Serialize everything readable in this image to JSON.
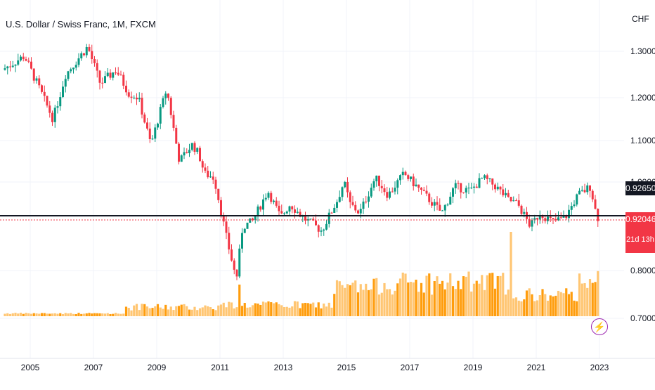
{
  "header": {
    "title": "U.S. Dollar / Swiss Franc, 1M, FXCM",
    "currency": "CHF"
  },
  "price_labels": {
    "reference_price": "0.92650",
    "last_price": "0.92046",
    "countdown": "21d 13h"
  },
  "icons": {
    "lightning": "lightning-icon"
  },
  "chart_data": {
    "type": "candlestick",
    "interval": "1M",
    "x_tick_labels": [
      "2005",
      "2007",
      "2009",
      "2011",
      "2013",
      "2015",
      "2017",
      "2019",
      "2021",
      "2023"
    ],
    "y_tick_labels": [
      "1.30000",
      "1.20000",
      "1.10000",
      "1.00000",
      "0.80000",
      "0.70000"
    ],
    "ylim": [
      0.64,
      1.36
    ],
    "xlim": [
      2004.2,
      2023.35
    ],
    "anchors": [
      [
        2004.2,
        1.26
      ],
      [
        2004.9,
        1.29
      ],
      [
        2005.5,
        1.2
      ],
      [
        2005.8,
        1.15
      ],
      [
        2006.2,
        1.25
      ],
      [
        2006.9,
        1.31
      ],
      [
        2007.3,
        1.23
      ],
      [
        2007.8,
        1.26
      ],
      [
        2008.2,
        1.21
      ],
      [
        2008.5,
        1.2
      ],
      [
        2008.9,
        1.09
      ],
      [
        2009.2,
        1.17
      ],
      [
        2009.4,
        1.22
      ],
      [
        2009.8,
        1.05
      ],
      [
        2010.2,
        1.09
      ],
      [
        2010.4,
        1.07
      ],
      [
        2010.6,
        1.02
      ],
      [
        2010.9,
        1.01
      ],
      [
        2011.3,
        0.87
      ],
      [
        2011.6,
        0.78
      ],
      [
        2011.8,
        0.9
      ],
      [
        2012.1,
        0.91
      ],
      [
        2012.6,
        0.98
      ],
      [
        2013.0,
        0.92
      ],
      [
        2013.3,
        0.95
      ],
      [
        2013.7,
        0.92
      ],
      [
        2014.3,
        0.89
      ],
      [
        2014.8,
        0.96
      ],
      [
        2015.0,
        1.0
      ],
      [
        2015.2,
        0.95
      ],
      [
        2015.5,
        0.93
      ],
      [
        2016.0,
        1.01
      ],
      [
        2016.4,
        0.97
      ],
      [
        2016.9,
        1.02
      ],
      [
        2017.3,
        0.99
      ],
      [
        2017.7,
        0.96
      ],
      [
        2018.1,
        0.93
      ],
      [
        2018.5,
        0.99
      ],
      [
        2019.0,
        0.98
      ],
      [
        2019.4,
        1.01
      ],
      [
        2019.8,
        0.99
      ],
      [
        2020.2,
        0.96
      ],
      [
        2020.5,
        0.95
      ],
      [
        2020.9,
        0.9
      ],
      [
        2021.2,
        0.93
      ],
      [
        2021.6,
        0.91
      ],
      [
        2022.0,
        0.92
      ],
      [
        2022.4,
        0.97
      ],
      [
        2022.8,
        0.99
      ],
      [
        2023.0,
        0.92
      ]
    ],
    "volume": {
      "series_color": "#ff9800",
      "spike_years": [
        2011.6,
        2015.0,
        2020.2
      ]
    },
    "colors": {
      "up": "#089981",
      "down": "#f23645",
      "volume": "#ff9800"
    },
    "horizontal_line_price": 0.9265,
    "last_price_line": 0.92046
  }
}
